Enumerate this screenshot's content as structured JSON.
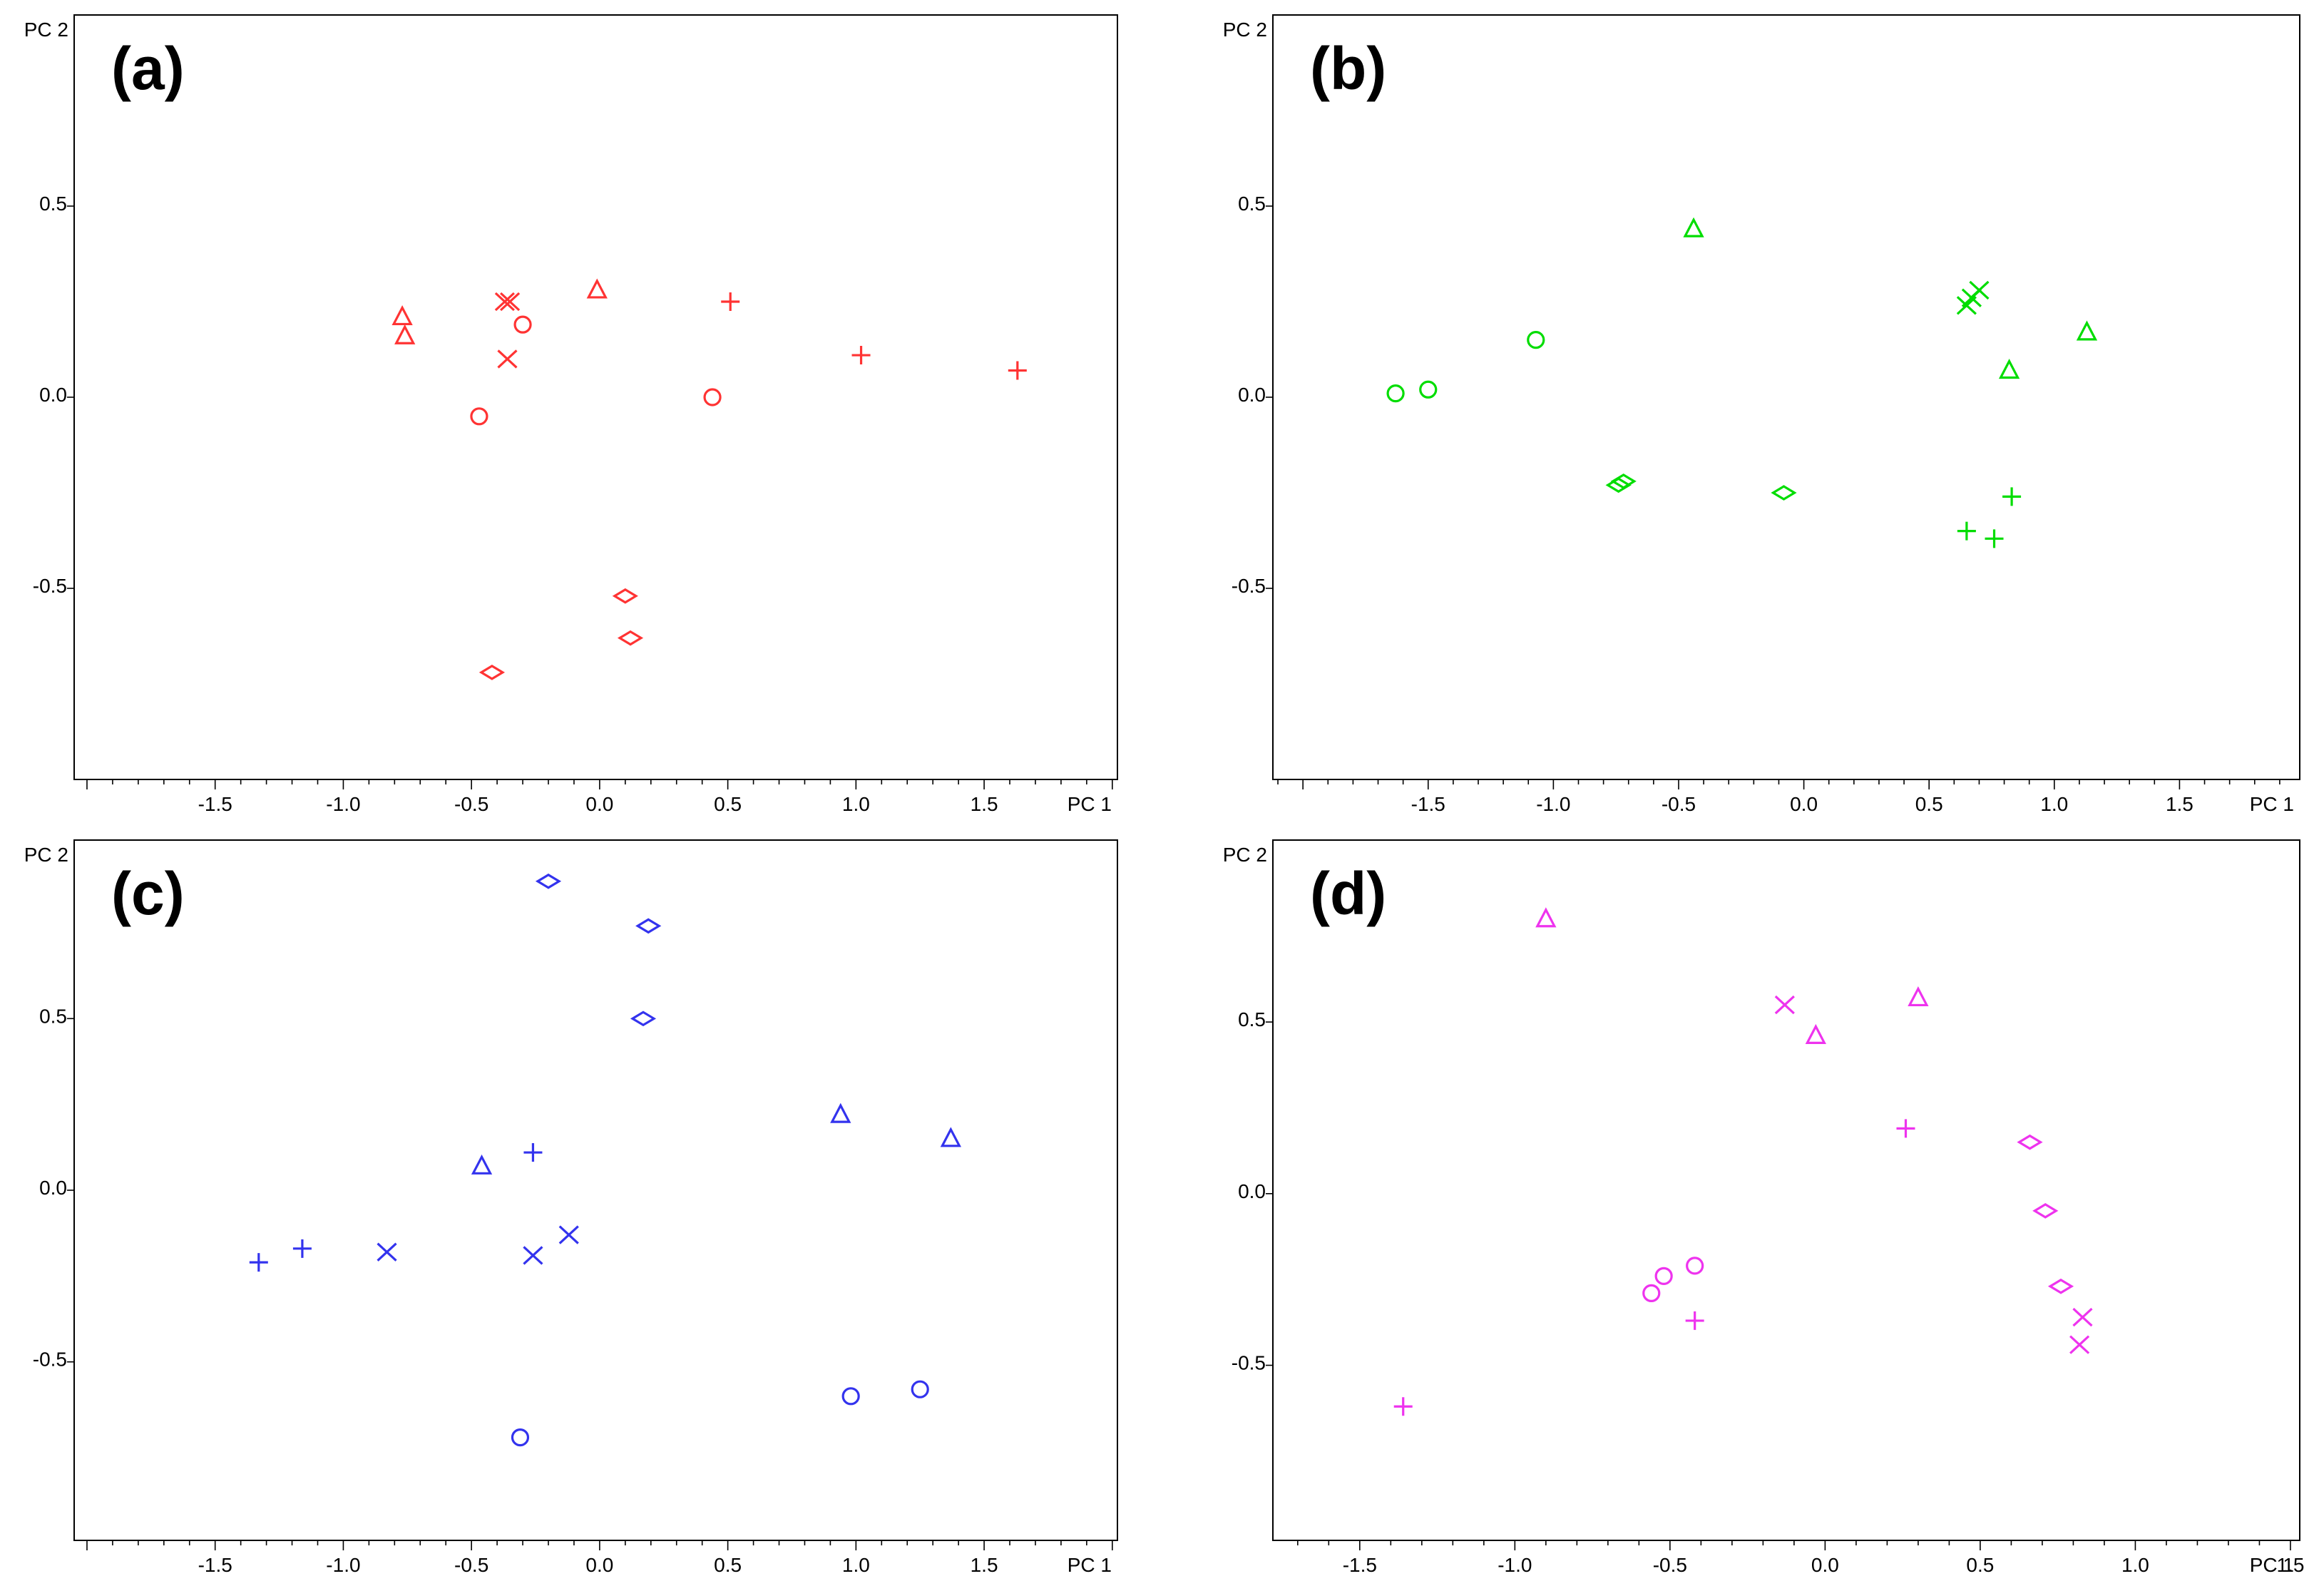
{
  "figure": {
    "panel_count": 4
  },
  "chart_data": [
    {
      "type": "scatter",
      "panel_label": "(a)",
      "xlabel": "PC 1",
      "ylabel": "PC 2",
      "color": "#ff3333",
      "xlim": [
        -2.05,
        2.02
      ],
      "ylim": [
        -1.0,
        1.0
      ],
      "xticks": [
        "-1.5",
        "-1.0",
        "-0.5",
        "0.0",
        "0.5",
        "1.0",
        "1.5"
      ],
      "yticks": [
        "0.5",
        "0.0",
        "-0.5"
      ],
      "points": [
        {
          "x": -0.77,
          "y": 0.21,
          "marker": "triangle"
        },
        {
          "x": -0.76,
          "y": 0.16,
          "marker": "triangle"
        },
        {
          "x": -0.01,
          "y": 0.28,
          "marker": "triangle"
        },
        {
          "x": -0.37,
          "y": 0.25,
          "marker": "x"
        },
        {
          "x": -0.35,
          "y": 0.25,
          "marker": "x"
        },
        {
          "x": -0.36,
          "y": 0.1,
          "marker": "x"
        },
        {
          "x": -0.3,
          "y": 0.19,
          "marker": "circle"
        },
        {
          "x": -0.47,
          "y": -0.05,
          "marker": "circle"
        },
        {
          "x": 0.44,
          "y": 0.0,
          "marker": "circle"
        },
        {
          "x": 0.51,
          "y": 0.25,
          "marker": "plus"
        },
        {
          "x": 1.02,
          "y": 0.11,
          "marker": "plus"
        },
        {
          "x": 1.63,
          "y": 0.07,
          "marker": "plus"
        },
        {
          "x": 0.1,
          "y": -0.52,
          "marker": "diamond"
        },
        {
          "x": 0.12,
          "y": -0.63,
          "marker": "diamond"
        },
        {
          "x": -0.42,
          "y": -0.72,
          "marker": "diamond"
        }
      ]
    },
    {
      "type": "scatter",
      "panel_label": "(b)",
      "xlabel": "PC 1",
      "ylabel": "PC 2",
      "color": "#00dd00",
      "xlim": [
        -2.12,
        1.98
      ],
      "ylim": [
        -1.0,
        1.0
      ],
      "xticks": [
        "-1.5",
        "-1.0",
        "-0.5",
        "0.0",
        "0.5",
        "1.0",
        "1.5"
      ],
      "yticks": [
        "0.5",
        "0.0",
        "-0.5"
      ],
      "points": [
        {
          "x": -1.63,
          "y": 0.01,
          "marker": "circle"
        },
        {
          "x": -1.5,
          "y": 0.02,
          "marker": "circle"
        },
        {
          "x": -1.07,
          "y": 0.15,
          "marker": "circle"
        },
        {
          "x": -0.44,
          "y": 0.44,
          "marker": "triangle"
        },
        {
          "x": 0.82,
          "y": 0.07,
          "marker": "triangle"
        },
        {
          "x": 1.13,
          "y": 0.17,
          "marker": "triangle"
        },
        {
          "x": 0.65,
          "y": 0.24,
          "marker": "x"
        },
        {
          "x": 0.7,
          "y": 0.28,
          "marker": "x"
        },
        {
          "x": 0.67,
          "y": 0.26,
          "marker": "x"
        },
        {
          "x": -0.74,
          "y": -0.23,
          "marker": "diamond"
        },
        {
          "x": -0.72,
          "y": -0.22,
          "marker": "diamond"
        },
        {
          "x": -0.08,
          "y": -0.25,
          "marker": "diamond"
        },
        {
          "x": 0.65,
          "y": -0.35,
          "marker": "plus"
        },
        {
          "x": 0.76,
          "y": -0.37,
          "marker": "plus"
        },
        {
          "x": 0.83,
          "y": -0.26,
          "marker": "plus"
        }
      ]
    },
    {
      "type": "scatter",
      "panel_label": "(c)",
      "xlabel": "PC 1",
      "ylabel": "PC 2",
      "color": "#3333ee",
      "xlim": [
        -2.05,
        2.02
      ],
      "ylim": [
        -1.02,
        1.02
      ],
      "xticks": [
        "-1.5",
        "-1.0",
        "-0.5",
        "0.0",
        "0.5",
        "1.0",
        "1.5"
      ],
      "yticks": [
        "0.5",
        "0.0",
        "-0.5"
      ],
      "points": [
        {
          "x": -0.2,
          "y": 0.9,
          "marker": "diamond"
        },
        {
          "x": 0.19,
          "y": 0.77,
          "marker": "diamond"
        },
        {
          "x": 0.17,
          "y": 0.5,
          "marker": "diamond"
        },
        {
          "x": 0.94,
          "y": 0.22,
          "marker": "triangle"
        },
        {
          "x": 1.37,
          "y": 0.15,
          "marker": "triangle"
        },
        {
          "x": -0.46,
          "y": 0.07,
          "marker": "triangle"
        },
        {
          "x": -0.26,
          "y": 0.11,
          "marker": "plus"
        },
        {
          "x": -1.16,
          "y": -0.17,
          "marker": "plus"
        },
        {
          "x": -1.33,
          "y": -0.21,
          "marker": "plus"
        },
        {
          "x": -0.83,
          "y": -0.18,
          "marker": "x"
        },
        {
          "x": -0.26,
          "y": -0.19,
          "marker": "x"
        },
        {
          "x": -0.12,
          "y": -0.13,
          "marker": "x"
        },
        {
          "x": 0.98,
          "y": -0.6,
          "marker": "circle"
        },
        {
          "x": 1.25,
          "y": -0.58,
          "marker": "circle"
        },
        {
          "x": -0.31,
          "y": -0.72,
          "marker": "circle"
        }
      ]
    },
    {
      "type": "scatter",
      "panel_label": "(d)",
      "xlabel": "PC 1",
      "ylabel": "PC 2",
      "color": "#ee33ee",
      "xlim": [
        -1.78,
        1.53
      ],
      "ylim": [
        -1.01,
        1.03
      ],
      "xticks": [
        "-1.5",
        "-1.0",
        "-0.5",
        "0.0",
        "0.5",
        "1.0",
        "1.5"
      ],
      "yticks": [
        "0.5",
        "0.0",
        "-0.5"
      ],
      "points": [
        {
          "x": -0.9,
          "y": 0.8,
          "marker": "triangle"
        },
        {
          "x": 0.3,
          "y": 0.57,
          "marker": "triangle"
        },
        {
          "x": -0.03,
          "y": 0.46,
          "marker": "triangle"
        },
        {
          "x": -0.13,
          "y": 0.55,
          "marker": "x"
        },
        {
          "x": 0.83,
          "y": -0.36,
          "marker": "x"
        },
        {
          "x": 0.82,
          "y": -0.44,
          "marker": "x"
        },
        {
          "x": 0.26,
          "y": 0.19,
          "marker": "plus"
        },
        {
          "x": -0.42,
          "y": -0.37,
          "marker": "plus"
        },
        {
          "x": -1.36,
          "y": -0.62,
          "marker": "plus"
        },
        {
          "x": 0.66,
          "y": 0.15,
          "marker": "diamond"
        },
        {
          "x": 0.71,
          "y": -0.05,
          "marker": "diamond"
        },
        {
          "x": 0.76,
          "y": -0.27,
          "marker": "diamond"
        },
        {
          "x": -0.42,
          "y": -0.21,
          "marker": "circle"
        },
        {
          "x": -0.52,
          "y": -0.24,
          "marker": "circle"
        },
        {
          "x": -0.56,
          "y": -0.29,
          "marker": "circle"
        }
      ]
    }
  ]
}
